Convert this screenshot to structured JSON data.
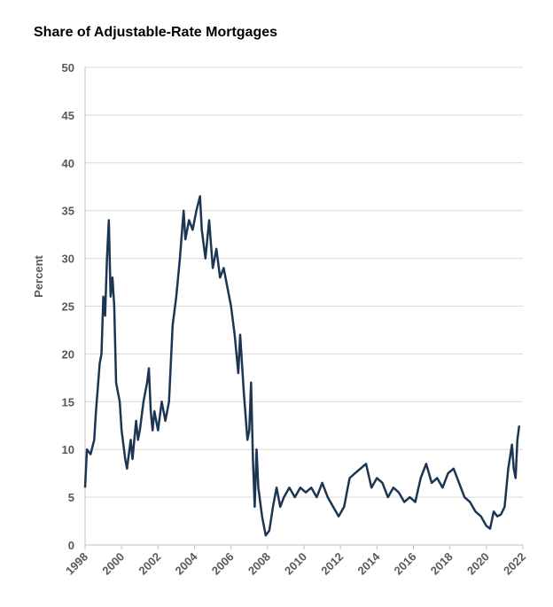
{
  "chart_data": {
    "type": "line",
    "title": "Share of Adjustable-Rate Mortgages",
    "y_label": "Percent",
    "x": [
      1998.0,
      1998.1,
      1998.3,
      1998.5,
      1998.6,
      1998.8,
      1998.9,
      1999.0,
      1999.1,
      1999.2,
      1999.3,
      1999.4,
      1999.5,
      1999.6,
      1999.7,
      1999.8,
      1999.9,
      2000.0,
      2000.2,
      2000.3,
      2000.5,
      2000.6,
      2000.8,
      2000.9,
      2001.0,
      2001.2,
      2001.4,
      2001.5,
      2001.6,
      2001.7,
      2001.8,
      2002.0,
      2002.2,
      2002.4,
      2002.6,
      2002.8,
      2003.0,
      2003.2,
      2003.4,
      2003.5,
      2003.7,
      2003.9,
      2004.1,
      2004.3,
      2004.4,
      2004.6,
      2004.8,
      2005.0,
      2005.2,
      2005.4,
      2005.6,
      2005.8,
      2006.0,
      2006.2,
      2006.4,
      2006.5,
      2006.7,
      2006.9,
      2007.0,
      2007.1,
      2007.2,
      2007.3,
      2007.4,
      2007.5,
      2007.7,
      2007.9,
      2008.1,
      2008.3,
      2008.5,
      2008.7,
      2008.9,
      2009.2,
      2009.5,
      2009.8,
      2010.1,
      2010.4,
      2010.7,
      2011.0,
      2011.3,
      2011.6,
      2011.9,
      2012.2,
      2012.5,
      2012.8,
      2013.1,
      2013.4,
      2013.7,
      2014.0,
      2014.3,
      2014.6,
      2014.9,
      2015.2,
      2015.5,
      2015.8,
      2016.1,
      2016.4,
      2016.7,
      2017.0,
      2017.3,
      2017.6,
      2017.9,
      2018.2,
      2018.5,
      2018.8,
      2019.1,
      2019.4,
      2019.7,
      2020.0,
      2020.2,
      2020.4,
      2020.6,
      2020.8,
      2021.0,
      2021.2,
      2021.4,
      2021.5,
      2021.6,
      2021.7,
      2021.8
    ],
    "series": [
      {
        "color": "#1c3553",
        "values": [
          6,
          10,
          9.5,
          11,
          14,
          19,
          20,
          26,
          24,
          30,
          34,
          26,
          28,
          25,
          17,
          16,
          15,
          12,
          9,
          8,
          11,
          9,
          13,
          11,
          12,
          15,
          17,
          18.5,
          14,
          12,
          14,
          12,
          15,
          13,
          15,
          23,
          26,
          30,
          35,
          32,
          34,
          33,
          35,
          36.5,
          33,
          30,
          34,
          29,
          31,
          28,
          29,
          27,
          25,
          22,
          18,
          22,
          16,
          11,
          12,
          17,
          9,
          4,
          10,
          6,
          3,
          1,
          1.5,
          4,
          6,
          4,
          5,
          6,
          5,
          6,
          5.5,
          6,
          5,
          6.5,
          5,
          4,
          3,
          4,
          7,
          7.5,
          8,
          8.5,
          6,
          7,
          6.5,
          5,
          6,
          5.5,
          4.5,
          5,
          4.5,
          7,
          8.5,
          6.5,
          7,
          6,
          7.5,
          8,
          6.5,
          5,
          4.5,
          3.5,
          3,
          2,
          1.7,
          3.5,
          3,
          3.2,
          4,
          8,
          10.5,
          8,
          7,
          11,
          12.5
        ]
      }
    ],
    "xlim": [
      1998,
      2022
    ],
    "xticks": [
      1998,
      2000,
      2002,
      2004,
      2006,
      2008,
      2010,
      2012,
      2014,
      2016,
      2018,
      2020,
      2022
    ],
    "ylim": [
      0,
      50
    ],
    "yticks": [
      0,
      5,
      10,
      15,
      20,
      25,
      30,
      35,
      40,
      45,
      50
    ],
    "grid": true
  }
}
